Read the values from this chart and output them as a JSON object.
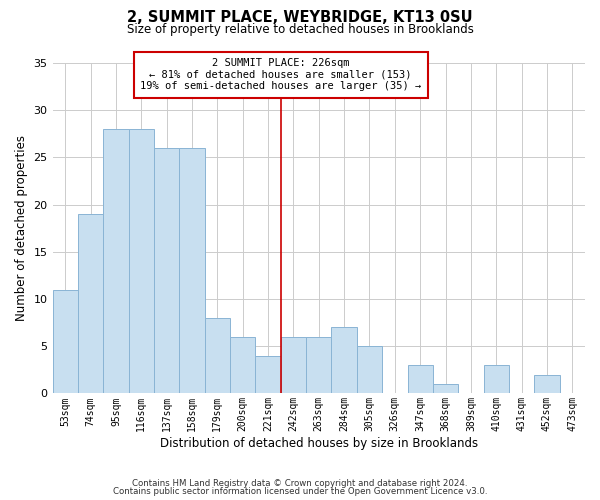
{
  "title": "2, SUMMIT PLACE, WEYBRIDGE, KT13 0SU",
  "subtitle": "Size of property relative to detached houses in Brooklands",
  "xlabel": "Distribution of detached houses by size in Brooklands",
  "ylabel": "Number of detached properties",
  "bar_labels": [
    "53sqm",
    "74sqm",
    "95sqm",
    "116sqm",
    "137sqm",
    "158sqm",
    "179sqm",
    "200sqm",
    "221sqm",
    "242sqm",
    "263sqm",
    "284sqm",
    "305sqm",
    "326sqm",
    "347sqm",
    "368sqm",
    "389sqm",
    "410sqm",
    "431sqm",
    "452sqm",
    "473sqm"
  ],
  "bar_values": [
    11,
    19,
    28,
    28,
    26,
    26,
    8,
    6,
    4,
    6,
    6,
    7,
    5,
    0,
    3,
    1,
    0,
    3,
    0,
    2,
    0
  ],
  "bar_color": "#c8dff0",
  "bar_edge_color": "#8ab4d4",
  "reference_line_x": 8.5,
  "reference_line_color": "#cc0000",
  "annotation_text": "2 SUMMIT PLACE: 226sqm\n← 81% of detached houses are smaller (153)\n19% of semi-detached houses are larger (35) →",
  "annotation_box_color": "#ffffff",
  "annotation_box_edge": "#cc0000",
  "ylim": [
    0,
    35
  ],
  "yticks": [
    0,
    5,
    10,
    15,
    20,
    25,
    30,
    35
  ],
  "footer1": "Contains HM Land Registry data © Crown copyright and database right 2024.",
  "footer2": "Contains public sector information licensed under the Open Government Licence v3.0.",
  "background_color": "#ffffff",
  "grid_color": "#cccccc"
}
